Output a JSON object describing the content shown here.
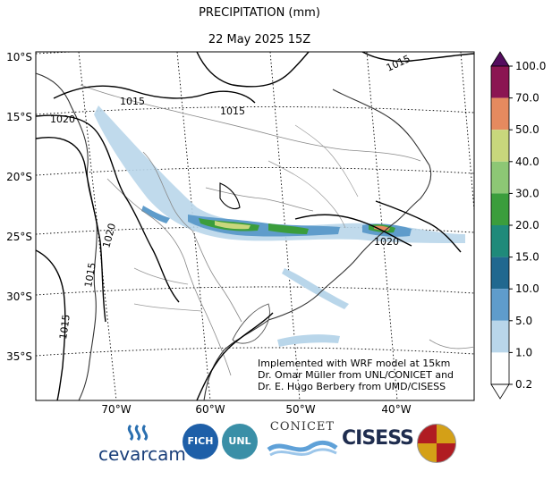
{
  "title": "PRECIPITATION (mm)",
  "subtitle": "22 May 2025 15Z",
  "map": {
    "lat_labels": [
      "10°S",
      "15°S",
      "20°S",
      "25°S",
      "30°S",
      "35°S"
    ],
    "lon_labels": [
      "70°W",
      "60°W",
      "50°W",
      "40°W"
    ],
    "isobar_labels": [
      "1015",
      "1015",
      "1020",
      "1015",
      "1020",
      "1015",
      "1015",
      "1020"
    ]
  },
  "colorbar": {
    "levels": [
      "100.0",
      "70.0",
      "50.0",
      "40.0",
      "30.0",
      "20.0",
      "15.0",
      "10.0",
      "5.0",
      "1.0",
      "0.2"
    ],
    "colors": [
      "#540c5e",
      "#8b1552",
      "#e58a5f",
      "#c8d77c",
      "#8dc775",
      "#3b9d3c",
      "#1f8a7a",
      "#21688f",
      "#5f9ccb",
      "#b9d6ea",
      "#ffffff"
    ]
  },
  "credits": {
    "line1": "Implemented with WRF model at 15km",
    "line2": "Dr. Omar Müller from UNL/CONICET and",
    "line3": "Dr. E. Hugo Berbery from UMD/CISESS"
  },
  "logos": {
    "cevarcam": "cevarcam",
    "fich": "FICH",
    "unl": "UNL",
    "conicet": "CONICET",
    "cisess": "CISESS"
  }
}
